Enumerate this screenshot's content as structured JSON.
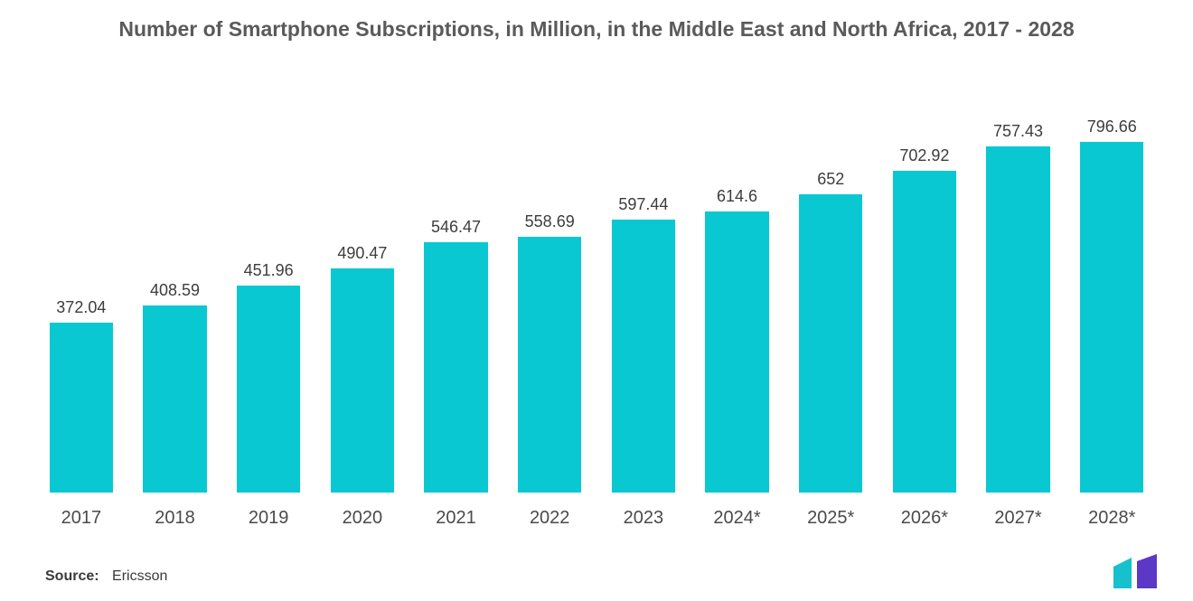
{
  "chart": {
    "type": "bar",
    "title": "Number of Smartphone Subscriptions, in Million, in the Middle East and North Africa, 2017 - 2028",
    "title_fontsize": 23,
    "title_color": "#5a5a5a",
    "categories": [
      "2017",
      "2018",
      "2019",
      "2020",
      "2021",
      "2022",
      "2023",
      "2024*",
      "2025*",
      "2026*",
      "2027*",
      "2028*"
    ],
    "values": [
      372.04,
      408.59,
      451.96,
      490.47,
      546.47,
      558.69,
      597.44,
      614.6,
      652,
      702.92,
      757.43,
      796.66
    ],
    "value_labels": [
      "372.04",
      "408.59",
      "451.96",
      "490.47",
      "546.47",
      "558.69",
      "597.44",
      "614.6",
      "652",
      "702.92",
      "757.43",
      "796.66"
    ],
    "bar_color": "#0ac8d1",
    "value_label_fontsize": 18,
    "value_label_color": "#3d3d3d",
    "xaxis_label_fontsize": 20,
    "xaxis_label_color": "#4a4a4a",
    "background_color": "#ffffff",
    "ylim": [
      0,
      820
    ],
    "bar_width_ratio": 0.68
  },
  "source": {
    "label": "Source:",
    "name": "Ericsson"
  },
  "logo": {
    "bar1_color": "#16c0cc",
    "bar2_color": "#5b39c6"
  }
}
